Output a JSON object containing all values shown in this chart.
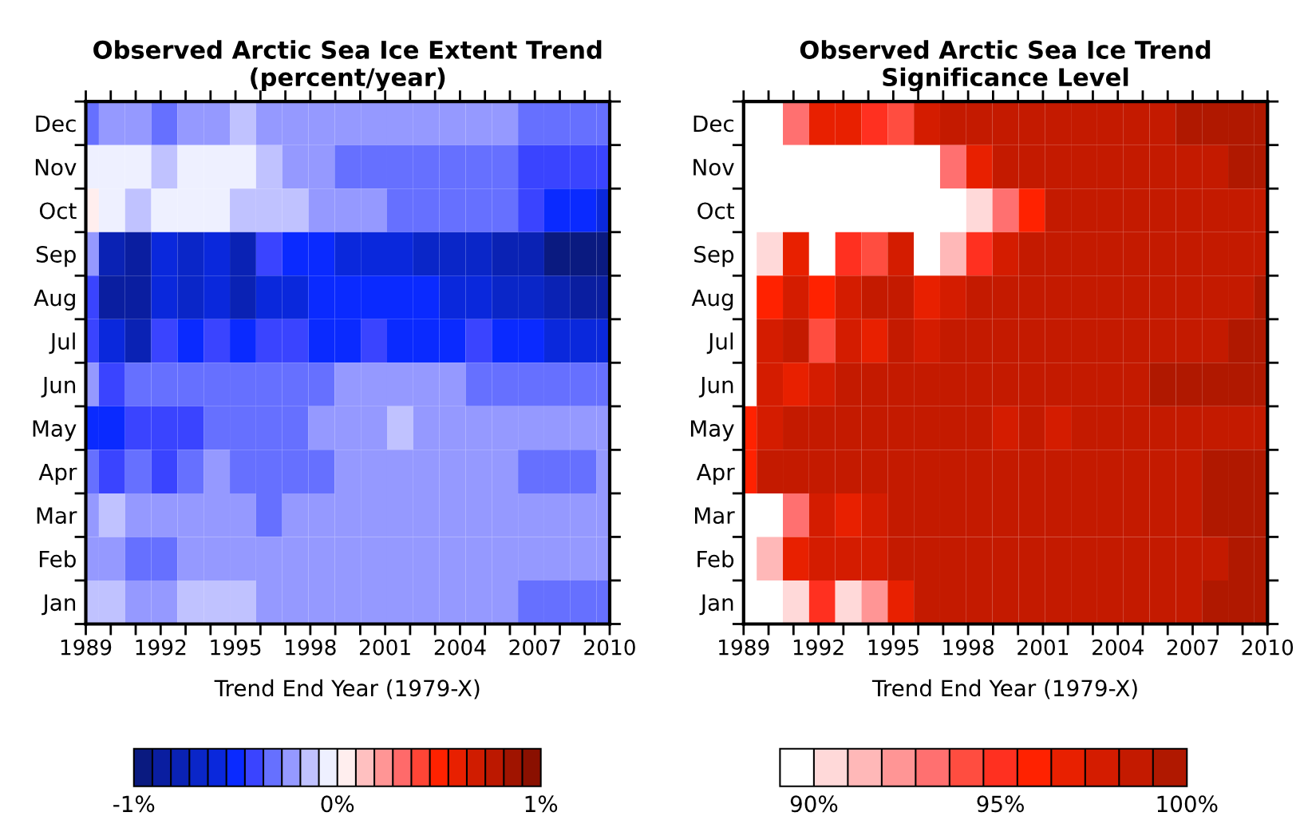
{
  "chart_data": [
    {
      "type": "heatmap",
      "title": "Observed Arctic Sea Ice Extent Trend\n(percent/year)",
      "xlabel": "Trend End Year (1979-X)",
      "x": [
        1989,
        1990.05,
        1991.1,
        1992.15,
        1993.2,
        1994.25,
        1995.3,
        1996.35,
        1997.4,
        1998.45,
        1999.5,
        2000.55,
        2001.6,
        2002.65,
        2003.7,
        2004.75,
        2005.8,
        2006.85,
        2007.9,
        2008.95,
        2010
      ],
      "xlim": [
        1989,
        2010
      ],
      "xticks": [
        1989,
        {
          "value": 1990,
          "label": null
        },
        {
          "value": 1991,
          "label": null
        },
        1992,
        {
          "value": 1993,
          "label": null
        },
        {
          "value": 1994,
          "label": null
        },
        1995,
        {
          "value": 1996,
          "label": null
        },
        {
          "value": 1997,
          "label": null
        },
        1998,
        {
          "value": 1999,
          "label": null
        },
        {
          "value": 2000,
          "label": null
        },
        2001,
        {
          "value": 2002,
          "label": null
        },
        {
          "value": 2003,
          "label": null
        },
        2004,
        {
          "value": 2005,
          "label": null
        },
        {
          "value": 2006,
          "label": null
        },
        2007,
        {
          "value": 2008,
          "label": null
        },
        {
          "value": 2009,
          "label": null
        },
        2010
      ],
      "y_categories": [
        "Dec",
        "Nov",
        "Oct",
        "Sep",
        "Aug",
        "Jul",
        "Jun",
        "May",
        "Apr",
        "Mar",
        "Feb",
        "Jan"
      ],
      "cells": [
        [
          -0.32,
          -0.23,
          -0.23,
          -0.32,
          -0.23,
          -0.23,
          -0.14,
          -0.23,
          -0.23,
          -0.23,
          -0.23,
          -0.23,
          -0.23,
          -0.23,
          -0.23,
          -0.23,
          -0.23,
          -0.32,
          -0.32,
          -0.32,
          -0.32
        ],
        [
          -0.05,
          -0.05,
          -0.05,
          -0.14,
          -0.05,
          -0.05,
          -0.05,
          -0.14,
          -0.23,
          -0.23,
          -0.32,
          -0.32,
          -0.32,
          -0.32,
          -0.32,
          -0.32,
          -0.32,
          -0.41,
          -0.41,
          -0.41,
          -0.41
        ],
        [
          0.05,
          -0.05,
          -0.14,
          -0.05,
          -0.05,
          -0.05,
          -0.14,
          -0.14,
          -0.14,
          -0.23,
          -0.23,
          -0.23,
          -0.32,
          -0.32,
          -0.32,
          -0.32,
          -0.32,
          -0.41,
          -0.5,
          -0.5,
          -0.59
        ],
        [
          -0.23,
          -0.77,
          -0.86,
          -0.59,
          -0.68,
          -0.59,
          -0.77,
          -0.41,
          -0.5,
          -0.5,
          -0.59,
          -0.59,
          -0.59,
          -0.68,
          -0.68,
          -0.68,
          -0.77,
          -0.77,
          -0.95,
          -0.95,
          -0.95
        ],
        [
          -0.41,
          -0.86,
          -0.86,
          -0.59,
          -0.68,
          -0.59,
          -0.77,
          -0.59,
          -0.59,
          -0.5,
          -0.5,
          -0.5,
          -0.5,
          -0.5,
          -0.59,
          -0.59,
          -0.68,
          -0.68,
          -0.77,
          -0.86,
          -0.86
        ],
        [
          -0.41,
          -0.59,
          -0.77,
          -0.41,
          -0.5,
          -0.41,
          -0.5,
          -0.41,
          -0.41,
          -0.5,
          -0.5,
          -0.41,
          -0.5,
          -0.5,
          -0.5,
          -0.41,
          -0.5,
          -0.5,
          -0.59,
          -0.59,
          -0.59
        ],
        [
          -0.23,
          -0.41,
          -0.32,
          -0.32,
          -0.32,
          -0.32,
          -0.32,
          -0.32,
          -0.32,
          -0.32,
          -0.23,
          -0.23,
          -0.23,
          -0.23,
          -0.23,
          -0.32,
          -0.32,
          -0.32,
          -0.32,
          -0.32,
          -0.32
        ],
        [
          -0.5,
          -0.5,
          -0.41,
          -0.41,
          -0.41,
          -0.32,
          -0.32,
          -0.32,
          -0.32,
          -0.23,
          -0.23,
          -0.23,
          -0.14,
          -0.23,
          -0.23,
          -0.23,
          -0.23,
          -0.23,
          -0.23,
          -0.23,
          -0.23
        ],
        [
          -0.32,
          -0.41,
          -0.32,
          -0.41,
          -0.32,
          -0.23,
          -0.32,
          -0.32,
          -0.32,
          -0.32,
          -0.23,
          -0.23,
          -0.23,
          -0.23,
          -0.23,
          -0.23,
          -0.23,
          -0.32,
          -0.32,
          -0.32,
          -0.23
        ],
        [
          -0.23,
          -0.14,
          -0.23,
          -0.23,
          -0.23,
          -0.23,
          -0.23,
          -0.32,
          -0.23,
          -0.23,
          -0.23,
          -0.23,
          -0.23,
          -0.23,
          -0.23,
          -0.23,
          -0.23,
          -0.23,
          -0.23,
          -0.23,
          -0.23
        ],
        [
          -0.23,
          -0.23,
          -0.32,
          -0.32,
          -0.23,
          -0.23,
          -0.23,
          -0.23,
          -0.23,
          -0.23,
          -0.23,
          -0.23,
          -0.23,
          -0.23,
          -0.23,
          -0.23,
          -0.23,
          -0.23,
          -0.23,
          -0.23,
          -0.23
        ],
        [
          -0.14,
          -0.14,
          -0.23,
          -0.23,
          -0.14,
          -0.14,
          -0.14,
          -0.23,
          -0.23,
          -0.23,
          -0.23,
          -0.23,
          -0.23,
          -0.23,
          -0.23,
          -0.23,
          -0.23,
          -0.32,
          -0.32,
          -0.32,
          -0.32
        ]
      ],
      "clim": [
        -1,
        1
      ],
      "cticks": [
        {
          "value": -1,
          "label": "-1%"
        },
        {
          "value": 0,
          "label": "0%"
        },
        {
          "value": 1,
          "label": "1%"
        }
      ],
      "colors": [
        "#0a1a80",
        "#0a1ea0",
        "#0a22b4",
        "#0a26c8",
        "#0a28dc",
        "#0a2aff",
        "#3a44ff",
        "#6670ff",
        "#9599ff",
        "#c0c2ff",
        "#eef0ff",
        "#ffeeee",
        "#ffc0c0",
        "#ff9595",
        "#ff6a6a",
        "#ff4536",
        "#ff2200",
        "#e82000",
        "#d01c00",
        "#bc1800",
        "#a01400",
        "#8a1000"
      ]
    },
    {
      "type": "heatmap",
      "title": "Observed Arctic Sea Ice Trend\nSignificance Level",
      "xlabel": "Trend End Year (1979-X)",
      "x": [
        1989,
        1990.05,
        1991.1,
        1992.15,
        1993.2,
        1994.25,
        1995.3,
        1996.35,
        1997.4,
        1998.45,
        1999.5,
        2000.55,
        2001.6,
        2002.65,
        2003.7,
        2004.75,
        2005.8,
        2006.85,
        2007.9,
        2008.95,
        2010
      ],
      "xlim": [
        1989,
        2010
      ],
      "xticks": [
        1989,
        {
          "value": 1990,
          "label": null
        },
        {
          "value": 1991,
          "label": null
        },
        1992,
        {
          "value": 1993,
          "label": null
        },
        {
          "value": 1994,
          "label": null
        },
        1995,
        {
          "value": 1996,
          "label": null
        },
        {
          "value": 1997,
          "label": null
        },
        1998,
        {
          "value": 1999,
          "label": null
        },
        {
          "value": 2000,
          "label": null
        },
        2001,
        {
          "value": 2002,
          "label": null
        },
        {
          "value": 2003,
          "label": null
        },
        2004,
        {
          "value": 2005,
          "label": null
        },
        {
          "value": 2006,
          "label": null
        },
        2007,
        {
          "value": 2008,
          "label": null
        },
        {
          "value": 2009,
          "label": null
        },
        2010
      ],
      "y_categories": [
        "Dec",
        "Nov",
        "Oct",
        "Sep",
        "Aug",
        "Jul",
        "Jun",
        "May",
        "Apr",
        "Mar",
        "Feb",
        "Jan"
      ],
      "cells": [
        [
          89.5,
          89.5,
          93.2,
          96.8,
          96.8,
          95.0,
          94.1,
          97.7,
          98.6,
          98.6,
          98.6,
          98.6,
          98.6,
          98.6,
          98.6,
          98.6,
          98.6,
          99.5,
          99.5,
          99.5,
          99.5
        ],
        [
          89.5,
          89.5,
          89.5,
          89.5,
          89.5,
          89.5,
          89.5,
          89.5,
          93.2,
          96.8,
          98.6,
          98.6,
          98.6,
          98.6,
          98.6,
          98.6,
          98.6,
          98.6,
          98.6,
          99.5,
          99.5
        ],
        [
          89.5,
          89.5,
          89.5,
          89.5,
          89.5,
          89.5,
          89.5,
          89.5,
          89.5,
          90.5,
          93.2,
          95.9,
          98.6,
          98.6,
          98.6,
          98.6,
          98.6,
          98.6,
          98.6,
          98.6,
          98.6
        ],
        [
          89.5,
          90.5,
          96.8,
          89.5,
          95.0,
          94.1,
          97.7,
          89.5,
          91.4,
          95.0,
          97.7,
          98.6,
          98.6,
          98.6,
          98.6,
          98.6,
          98.6,
          98.6,
          98.6,
          98.6,
          98.6
        ],
        [
          89.5,
          95.9,
          97.7,
          95.9,
          97.7,
          98.6,
          98.6,
          96.8,
          97.7,
          98.6,
          98.6,
          98.6,
          98.6,
          98.6,
          98.6,
          98.6,
          98.6,
          98.6,
          98.6,
          98.6,
          99.5
        ],
        [
          89.5,
          97.7,
          98.6,
          94.1,
          97.7,
          96.8,
          98.6,
          97.7,
          98.6,
          98.6,
          98.6,
          98.6,
          98.6,
          98.6,
          98.6,
          98.6,
          98.6,
          98.6,
          98.6,
          99.5,
          99.5
        ],
        [
          89.5,
          97.7,
          96.8,
          97.7,
          98.6,
          98.6,
          98.6,
          98.6,
          98.6,
          98.6,
          98.6,
          98.6,
          98.6,
          98.6,
          98.6,
          98.6,
          99.5,
          99.5,
          99.5,
          99.5,
          99.5
        ],
        [
          95.9,
          97.7,
          98.6,
          98.6,
          98.6,
          98.6,
          98.6,
          98.6,
          98.6,
          98.6,
          97.7,
          98.6,
          97.7,
          98.6,
          98.6,
          98.6,
          98.6,
          98.6,
          98.6,
          98.6,
          98.6
        ],
        [
          95.9,
          98.6,
          98.6,
          98.6,
          98.6,
          98.6,
          98.6,
          98.6,
          98.6,
          98.6,
          98.6,
          98.6,
          98.6,
          98.6,
          98.6,
          98.6,
          98.6,
          98.6,
          99.5,
          99.5,
          99.5
        ],
        [
          89.5,
          89.5,
          93.2,
          97.7,
          96.8,
          97.7,
          98.6,
          98.6,
          98.6,
          98.6,
          98.6,
          98.6,
          98.6,
          98.6,
          98.6,
          98.6,
          98.6,
          98.6,
          99.5,
          99.5,
          99.5
        ],
        [
          89.5,
          91.4,
          96.8,
          97.7,
          97.7,
          97.7,
          98.6,
          98.6,
          98.6,
          98.6,
          98.6,
          98.6,
          98.6,
          98.6,
          98.6,
          98.6,
          98.6,
          98.6,
          98.6,
          99.5,
          99.5
        ],
        [
          89.5,
          89.5,
          90.5,
          95.0,
          90.5,
          92.3,
          96.8,
          98.6,
          98.6,
          98.6,
          98.6,
          98.6,
          98.6,
          98.6,
          98.6,
          98.6,
          98.6,
          98.6,
          99.5,
          99.5,
          99.5
        ]
      ],
      "clim": [
        89.09,
        100
      ],
      "cticks": [
        {
          "value": 90,
          "label": "90%"
        },
        {
          "value": 95,
          "label": "95%"
        },
        {
          "value": 100,
          "label": "100%"
        }
      ],
      "colors": [
        "#ffffff",
        "#ffd9d9",
        "#ffb8b8",
        "#ff9595",
        "#ff7070",
        "#ff4d40",
        "#ff3020",
        "#ff2200",
        "#e82000",
        "#d41c00",
        "#c41a00",
        "#b01800"
      ]
    }
  ]
}
